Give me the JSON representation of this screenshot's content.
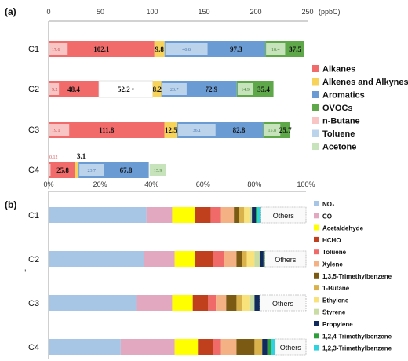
{
  "chart_data": [
    {
      "panel_label": "(a)",
      "type": "bar",
      "orientation": "horizontal",
      "stacked": true,
      "unit_label": "(ppbC)",
      "xlim": [
        0,
        250
      ],
      "x_ticks": [
        "0",
        "50",
        "100",
        "150",
        "200",
        "250"
      ],
      "categories": [
        "C1",
        "C2",
        "C3",
        "C4"
      ],
      "series": [
        {
          "name": "Alkanes",
          "color": "#f26b6b",
          "values": [
            102.1,
            48.4,
            111.8,
            25.8
          ]
        },
        {
          "name": "Alkenes and Alkynes",
          "color": "#f7d35a",
          "values": [
            9.8,
            8.2,
            12.5,
            3.1
          ]
        },
        {
          "name": "Aromatics",
          "color": "#6a9bd3",
          "values": [
            97.3,
            72.9,
            82.8,
            67.8
          ]
        },
        {
          "name": "OVOCs",
          "color": "#5fa84a",
          "values": [
            37.5,
            35.4,
            25.7,
            0
          ]
        }
      ],
      "gap_after_series_0": [
        0,
        52.2,
        0,
        0
      ],
      "gap_label": "52.2 ᵃ",
      "inner_series": [
        {
          "name": "n-Butane",
          "color": "#f9c4c4",
          "values": [
            17.6,
            9.2,
            19.1,
            0.12
          ]
        },
        {
          "name": "Toluene",
          "color": "#bcd3ec",
          "values": [
            40.8,
            23.7,
            36.1,
            23.7
          ]
        },
        {
          "name": "Acetone",
          "color": "#c7e3bc",
          "values": [
            18.4,
            14.9,
            15.8,
            15.9
          ]
        }
      ],
      "value_labels": {
        "Alkanes": [
          "102.1",
          "48.4",
          "111.8",
          "25.8"
        ],
        "Alkenes and Alkynes": [
          "9.8",
          "8.2",
          "12.5",
          "3.1"
        ],
        "Aromatics": [
          "97.3",
          "72.9",
          "82.8",
          "67.8"
        ],
        "OVOCs": [
          "37.5",
          "35.4",
          "25.7",
          ""
        ],
        "n-Butane": [
          "17.6",
          "9.2",
          "19.1",
          "0.12"
        ],
        "Toluene": [
          "40.8",
          "23.7",
          "36.1",
          "23.7"
        ],
        "Acetone": [
          "18.4",
          "14.9",
          "15.8",
          "15.9"
        ]
      },
      "legend": [
        "Alkanes",
        "Alkenes and Alkynes",
        "Aromatics",
        "OVOCs",
        "n-Butane",
        "Toluene",
        "Acetone"
      ],
      "legend_position": "right"
    },
    {
      "panel_label": "(b)",
      "type": "bar",
      "orientation": "horizontal",
      "stacked": true,
      "percent": true,
      "xlim": [
        0,
        100
      ],
      "x_ticks": [
        "0%",
        "20%",
        "40%",
        "60%",
        "80%",
        "100%"
      ],
      "categories": [
        "C1",
        "C2",
        "C3",
        "C4"
      ],
      "others_label": "Others",
      "stray_mark": "\"",
      "series": [
        {
          "name": "NO₂",
          "color": "#a7c6e6",
          "values": [
            38,
            37,
            34,
            28
          ]
        },
        {
          "name": "CO",
          "color": "#e2a8bf",
          "values": [
            10,
            12,
            14,
            21
          ]
        },
        {
          "name": "Acetaldehyde",
          "color": "#ffff00",
          "values": [
            9,
            8,
            8,
            9
          ]
        },
        {
          "name": "HCHO",
          "color": "#c0401e",
          "values": [
            6,
            7,
            6,
            6
          ]
        },
        {
          "name": "Toluene",
          "color": "#f06a6a",
          "values": [
            4,
            4,
            3,
            3
          ]
        },
        {
          "name": "Xylene",
          "color": "#f4b183",
          "values": [
            5,
            5,
            4,
            6
          ]
        },
        {
          "name": "1,3,5-Trimethylbenzene",
          "color": "#7b5a14",
          "values": [
            2,
            2,
            4,
            7
          ]
        },
        {
          "name": "1-Butane",
          "color": "#d9b24c",
          "values": [
            2,
            2,
            2,
            3
          ]
        },
        {
          "name": "Ethylene",
          "color": "#f9e27a",
          "values": [
            2,
            3,
            3,
            0
          ]
        },
        {
          "name": "Styrene",
          "color": "#c9dca3",
          "values": [
            1,
            2,
            2,
            0
          ]
        },
        {
          "name": "Propylene",
          "color": "#102a5c",
          "values": [
            1.5,
            1.5,
            2,
            2
          ]
        },
        {
          "name": "1,2,4-Trimethylbenzene",
          "color": "#2e9e3b",
          "values": [
            0.5,
            0.5,
            0,
            1.5
          ]
        },
        {
          "name": "1,2,3-Trimethylbenzene",
          "color": "#2fd3e0",
          "values": [
            1.5,
            0,
            0,
            1.5
          ]
        },
        {
          "name": "Others",
          "color": "#f2f2f2",
          "values": [
            17.5,
            16,
            18,
            12
          ]
        }
      ],
      "legend": [
        "NO₂",
        "CO",
        "Acetaldehyde",
        "HCHO",
        "Toluene",
        "Xylene",
        "1,3,5-Trimethylbenzene",
        "1-Butane",
        "Ethylene",
        "Styrene",
        "Propylene",
        "1,2,4-Trimethylbenzene",
        "1,2,3-Trimethylbenzene"
      ],
      "legend_position": "right"
    }
  ]
}
